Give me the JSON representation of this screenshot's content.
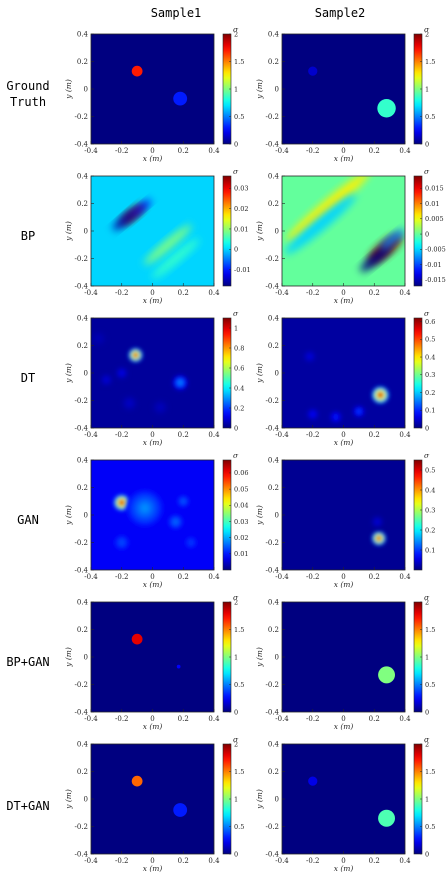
{
  "column_titles": [
    "Sample1",
    "Sample2"
  ],
  "row_labels": [
    "Ground\nTruth",
    "BP",
    "DT",
    "GAN",
    "BP+GAN",
    "DT+GAN"
  ],
  "colorbar_unit": "σ",
  "colormap": "jet",
  "chart_data": [
    {
      "type": "heatmap",
      "row_label": "Ground Truth",
      "column_title": "Sample1",
      "xlabel": "x (m)",
      "ylabel": "y (m)",
      "xlim": [
        -0.4,
        0.4
      ],
      "ylim": [
        -0.4,
        0.4
      ],
      "xticks": [
        "-0.4",
        "-0.2",
        "0",
        "0.2",
        "0.4"
      ],
      "yticks": [
        "-0.4",
        "-0.2",
        "0",
        "0.2",
        "0.4"
      ],
      "colorbar": {
        "ticks": [
          0,
          0.5,
          1,
          1.5,
          2
        ],
        "tick_labels": [
          "0",
          "0.5",
          "1",
          "1.5",
          "2"
        ],
        "range": [
          0,
          2
        ]
      },
      "background_value": 0,
      "features": [
        {
          "kind": "disk",
          "x": -0.1,
          "y": 0.13,
          "r": 0.035,
          "value": 1.7
        },
        {
          "kind": "disk",
          "x": 0.18,
          "y": -0.07,
          "r": 0.045,
          "value": 0.3
        }
      ]
    },
    {
      "type": "heatmap",
      "row_label": "Ground Truth",
      "column_title": "Sample2",
      "xlabel": "x (m)",
      "ylabel": "y (m)",
      "xlim": [
        -0.4,
        0.4
      ],
      "ylim": [
        -0.4,
        0.4
      ],
      "xticks": [
        "-0.4",
        "-0.2",
        "0",
        "0.2",
        "0.4"
      ],
      "yticks": [
        "-0.4",
        "-0.2",
        "0",
        "0.2",
        "0.4"
      ],
      "colorbar": {
        "ticks": [
          0,
          0.5,
          1,
          1.5,
          2
        ],
        "tick_labels": [
          "0",
          "0.5",
          "1",
          "1.5",
          "2"
        ],
        "range": [
          0,
          2
        ]
      },
      "background_value": 0,
      "features": [
        {
          "kind": "disk",
          "x": -0.2,
          "y": 0.13,
          "r": 0.03,
          "value": 0.15
        },
        {
          "kind": "disk",
          "x": 0.28,
          "y": -0.14,
          "r": 0.06,
          "value": 0.85
        }
      ]
    },
    {
      "type": "heatmap",
      "row_label": "BP",
      "column_title": "Sample1",
      "xlabel": "x (m)",
      "ylabel": "y (m)",
      "xlim": [
        -0.4,
        0.4
      ],
      "ylim": [
        -0.4,
        0.4
      ],
      "xticks": [
        "-0.4",
        "-0.2",
        "0",
        "0.2",
        "0.4"
      ],
      "yticks": [
        "-0.4",
        "-0.2",
        "0",
        "0.2",
        "0.4"
      ],
      "colorbar": {
        "ticks": [
          -0.01,
          0,
          0.01,
          0.02,
          0.03
        ],
        "tick_labels": [
          "-0.01",
          "0",
          "0.01",
          "0.02",
          "0.03"
        ],
        "range": [
          -0.018,
          0.036
        ]
      },
      "background_value": 0,
      "features": [
        {
          "kind": "ellipse",
          "x": -0.13,
          "y": 0.12,
          "rx": 0.1,
          "ry": 0.03,
          "angle": -40,
          "value": 0.036
        },
        {
          "kind": "ellipse",
          "x": -0.18,
          "y": 0.08,
          "rx": 0.1,
          "ry": 0.025,
          "angle": -40,
          "value": -0.016
        },
        {
          "kind": "ellipse",
          "x": -0.07,
          "y": 0.17,
          "rx": 0.08,
          "ry": 0.02,
          "angle": -40,
          "value": -0.012
        },
        {
          "kind": "ellipse",
          "x": 0.1,
          "y": -0.1,
          "rx": 0.2,
          "ry": 0.03,
          "angle": -40,
          "value": 0.009
        },
        {
          "kind": "ellipse",
          "x": 0.15,
          "y": -0.2,
          "rx": 0.2,
          "ry": 0.03,
          "angle": -40,
          "value": 0.005
        }
      ]
    },
    {
      "type": "heatmap",
      "row_label": "BP",
      "column_title": "Sample2",
      "xlabel": "x (m)",
      "ylabel": "y (m)",
      "xlim": [
        -0.4,
        0.4
      ],
      "ylim": [
        -0.4,
        0.4
      ],
      "xticks": [
        "-0.4",
        "-0.2",
        "0",
        "0.2",
        "0.4"
      ],
      "yticks": [
        "-0.4",
        "-0.2",
        "0",
        "0.2",
        "0.4"
      ],
      "colorbar": {
        "ticks": [
          -0.015,
          -0.01,
          -0.005,
          0,
          0.005,
          0.01,
          0.015
        ],
        "tick_labels": [
          "-0.015",
          "-0.01",
          "-0.005",
          "0",
          "0.005",
          "0.01",
          "0.015"
        ],
        "range": [
          -0.017,
          0.019
        ]
      },
      "background_value": 0,
      "features": [
        {
          "kind": "ellipse",
          "x": 0.27,
          "y": -0.13,
          "rx": 0.14,
          "ry": 0.045,
          "angle": -40,
          "value": 0.019
        },
        {
          "kind": "ellipse",
          "x": 0.21,
          "y": -0.2,
          "rx": 0.13,
          "ry": 0.03,
          "angle": -40,
          "value": -0.017
        },
        {
          "kind": "ellipse",
          "x": 0.32,
          "y": -0.06,
          "rx": 0.1,
          "ry": 0.025,
          "angle": -40,
          "value": -0.008
        },
        {
          "kind": "ellipse",
          "x": -0.1,
          "y": 0.18,
          "rx": 0.35,
          "ry": 0.04,
          "angle": -40,
          "value": 0.006
        },
        {
          "kind": "ellipse",
          "x": -0.15,
          "y": 0.05,
          "rx": 0.3,
          "ry": 0.04,
          "angle": -40,
          "value": -0.005
        }
      ]
    },
    {
      "type": "heatmap",
      "row_label": "DT",
      "column_title": "Sample1",
      "xlabel": "x (m)",
      "ylabel": "y (m)",
      "xlim": [
        -0.4,
        0.4
      ],
      "ylim": [
        -0.4,
        0.4
      ],
      "xticks": [
        "-0.4",
        "-0.2",
        "0",
        "0.2",
        "0.4"
      ],
      "yticks": [
        "-0.4",
        "-0.2",
        "0",
        "0.2",
        "0.4"
      ],
      "colorbar": {
        "ticks": [
          0,
          0.2,
          0.4,
          0.6,
          0.8,
          1
        ],
        "tick_labels": [
          "0",
          "0.2",
          "0.4",
          "0.6",
          "0.8",
          "1"
        ],
        "range": [
          0,
          1.1
        ]
      },
      "background_value": 0.03,
      "features": [
        {
          "kind": "blob",
          "x": -0.11,
          "y": 0.13,
          "r": 0.045,
          "value": 1.1
        },
        {
          "kind": "blob",
          "x": 0.18,
          "y": -0.07,
          "r": 0.05,
          "value": 0.3
        },
        {
          "kind": "blob",
          "x": -0.2,
          "y": 0.0,
          "r": 0.04,
          "value": 0.12
        },
        {
          "kind": "blob",
          "x": -0.3,
          "y": -0.05,
          "r": 0.04,
          "value": 0.1
        },
        {
          "kind": "blob",
          "x": -0.15,
          "y": -0.22,
          "r": 0.05,
          "value": 0.08
        },
        {
          "kind": "blob",
          "x": 0.05,
          "y": -0.25,
          "r": 0.05,
          "value": 0.07
        },
        {
          "kind": "blob",
          "x": -0.35,
          "y": 0.25,
          "r": 0.05,
          "value": 0.06
        }
      ]
    },
    {
      "type": "heatmap",
      "row_label": "DT",
      "column_title": "Sample2",
      "xlabel": "x (m)",
      "ylabel": "y (m)",
      "xlim": [
        -0.4,
        0.4
      ],
      "ylim": [
        -0.4,
        0.4
      ],
      "xticks": [
        "-0.4",
        "-0.2",
        "0",
        "0.2",
        "0.4"
      ],
      "yticks": [
        "-0.4",
        "-0.2",
        "0",
        "0.2",
        "0.4"
      ],
      "colorbar": {
        "ticks": [
          0,
          0.1,
          0.2,
          0.3,
          0.4,
          0.5,
          0.6
        ],
        "tick_labels": [
          "0",
          "0.1",
          "0.2",
          "0.3",
          "0.4",
          "0.5",
          "0.6"
        ],
        "range": [
          0,
          0.62
        ]
      },
      "background_value": 0.02,
      "features": [
        {
          "kind": "blob",
          "x": 0.24,
          "y": -0.16,
          "r": 0.055,
          "value": 0.62
        },
        {
          "kind": "blob",
          "x": 0.1,
          "y": -0.28,
          "r": 0.04,
          "value": 0.12
        },
        {
          "kind": "blob",
          "x": -0.05,
          "y": -0.32,
          "r": 0.04,
          "value": 0.1
        },
        {
          "kind": "blob",
          "x": -0.2,
          "y": -0.3,
          "r": 0.04,
          "value": 0.08
        },
        {
          "kind": "blob",
          "x": -0.22,
          "y": 0.12,
          "r": 0.04,
          "value": 0.06
        }
      ]
    },
    {
      "type": "heatmap",
      "row_label": "GAN",
      "column_title": "Sample1",
      "xlabel": "x (m)",
      "ylabel": "y (m)",
      "xlim": [
        -0.4,
        0.4
      ],
      "ylim": [
        -0.4,
        0.4
      ],
      "xticks": [
        "-0.4",
        "-0.2",
        "0",
        "0.2",
        "0.4"
      ],
      "yticks": [
        "-0.4",
        "-0.2",
        "0",
        "0.2",
        "0.4"
      ],
      "colorbar": {
        "ticks": [
          0.01,
          0.02,
          0.03,
          0.04,
          0.05,
          0.06
        ],
        "tick_labels": [
          "0.01",
          "0.02",
          "0.03",
          "0.04",
          "0.05",
          "0.06"
        ],
        "range": [
          0,
          0.068
        ]
      },
      "background_value": 0.008,
      "features": [
        {
          "kind": "blob",
          "x": -0.2,
          "y": 0.09,
          "r": 0.05,
          "value": 0.068
        },
        {
          "kind": "blob",
          "x": -0.05,
          "y": 0.05,
          "r": 0.12,
          "value": 0.018
        },
        {
          "kind": "blob",
          "x": 0.15,
          "y": -0.05,
          "r": 0.05,
          "value": 0.016
        },
        {
          "kind": "blob",
          "x": 0.2,
          "y": 0.1,
          "r": 0.04,
          "value": 0.015
        },
        {
          "kind": "blob",
          "x": -0.2,
          "y": -0.2,
          "r": 0.05,
          "value": 0.014
        },
        {
          "kind": "blob",
          "x": 0.25,
          "y": -0.2,
          "r": 0.04,
          "value": 0.013
        }
      ]
    },
    {
      "type": "heatmap",
      "row_label": "GAN",
      "column_title": "Sample2",
      "xlabel": "x (m)",
      "ylabel": "y (m)",
      "xlim": [
        -0.4,
        0.4
      ],
      "ylim": [
        -0.4,
        0.4
      ],
      "xticks": [
        "-0.4",
        "-0.2",
        "0",
        "0.2",
        "0.4"
      ],
      "yticks": [
        "-0.4",
        "-0.2",
        "0",
        "0.2",
        "0.4"
      ],
      "colorbar": {
        "ticks": [
          0.1,
          0.2,
          0.3,
          0.4,
          0.5
        ],
        "tick_labels": [
          "0.1",
          "0.2",
          "0.3",
          "0.4",
          "0.5"
        ],
        "range": [
          0,
          0.55
        ]
      },
      "background_value": 0.01,
      "features": [
        {
          "kind": "blob",
          "x": 0.23,
          "y": -0.17,
          "r": 0.045,
          "value": 0.55
        },
        {
          "kind": "blob",
          "x": 0.22,
          "y": -0.05,
          "r": 0.04,
          "value": 0.05
        }
      ]
    },
    {
      "type": "heatmap",
      "row_label": "BP+GAN",
      "column_title": "Sample1",
      "xlabel": "x (m)",
      "ylabel": "y (m)",
      "xlim": [
        -0.4,
        0.4
      ],
      "ylim": [
        -0.4,
        0.4
      ],
      "xticks": [
        "-0.4",
        "-0.2",
        "0",
        "0.2",
        "0.4"
      ],
      "yticks": [
        "-0.4",
        "-0.2",
        "0",
        "0.2",
        "0.4"
      ],
      "colorbar": {
        "ticks": [
          0,
          0.5,
          1,
          1.5,
          2
        ],
        "tick_labels": [
          "0",
          "0.5",
          "1",
          "1.5",
          "2"
        ],
        "range": [
          0,
          2
        ]
      },
      "background_value": 0,
      "features": [
        {
          "kind": "disk",
          "x": -0.1,
          "y": 0.13,
          "r": 0.035,
          "value": 1.8
        },
        {
          "kind": "disk",
          "x": 0.17,
          "y": -0.07,
          "r": 0.012,
          "value": 0.25
        }
      ]
    },
    {
      "type": "heatmap",
      "row_label": "BP+GAN",
      "column_title": "Sample2",
      "xlabel": "x (m)",
      "ylabel": "y (m)",
      "xlim": [
        -0.4,
        0.4
      ],
      "ylim": [
        -0.4,
        0.4
      ],
      "xticks": [
        "-0.4",
        "-0.2",
        "0",
        "0.2",
        "0.4"
      ],
      "yticks": [
        "-0.4",
        "-0.2",
        "0",
        "0.2",
        "0.4"
      ],
      "colorbar": {
        "ticks": [
          0,
          0.5,
          1,
          1.5,
          2
        ],
        "tick_labels": [
          "0",
          "0.5",
          "1",
          "1.5",
          "2"
        ],
        "range": [
          0,
          2
        ]
      },
      "background_value": 0,
      "features": [
        {
          "kind": "disk",
          "x": 0.28,
          "y": -0.13,
          "r": 0.055,
          "value": 1.0
        }
      ]
    },
    {
      "type": "heatmap",
      "row_label": "DT+GAN",
      "column_title": "Sample1",
      "xlabel": "x (m)",
      "ylabel": "y (m)",
      "xlim": [
        -0.4,
        0.4
      ],
      "ylim": [
        -0.4,
        0.4
      ],
      "xticks": [
        "-0.4",
        "-0.2",
        "0",
        "0.2",
        "0.4"
      ],
      "yticks": [
        "-0.4",
        "-0.2",
        "0",
        "0.2",
        "0.4"
      ],
      "colorbar": {
        "ticks": [
          0,
          0.5,
          1,
          1.5,
          2
        ],
        "tick_labels": [
          "0",
          "0.5",
          "1",
          "1.5",
          "2"
        ],
        "range": [
          0,
          2
        ]
      },
      "background_value": 0,
      "features": [
        {
          "kind": "disk",
          "x": -0.1,
          "y": 0.13,
          "r": 0.035,
          "value": 1.55
        },
        {
          "kind": "disk",
          "x": 0.18,
          "y": -0.08,
          "r": 0.045,
          "value": 0.3
        }
      ]
    },
    {
      "type": "heatmap",
      "row_label": "DT+GAN",
      "column_title": "Sample2",
      "xlabel": "x (m)",
      "ylabel": "y (m)",
      "xlim": [
        -0.4,
        0.4
      ],
      "ylim": [
        -0.4,
        0.4
      ],
      "xticks": [
        "-0.4",
        "-0.2",
        "0",
        "0.2",
        "0.4"
      ],
      "yticks": [
        "-0.4",
        "-0.2",
        "0",
        "0.2",
        "0.4"
      ],
      "colorbar": {
        "ticks": [
          0,
          0.5,
          1,
          1.5,
          2
        ],
        "tick_labels": [
          "0",
          "0.5",
          "1",
          "1.5",
          "2"
        ],
        "range": [
          0,
          2
        ]
      },
      "background_value": 0,
      "features": [
        {
          "kind": "disk",
          "x": -0.2,
          "y": 0.13,
          "r": 0.03,
          "value": 0.2
        },
        {
          "kind": "disk",
          "x": 0.28,
          "y": -0.14,
          "r": 0.055,
          "value": 0.9
        }
      ]
    }
  ]
}
